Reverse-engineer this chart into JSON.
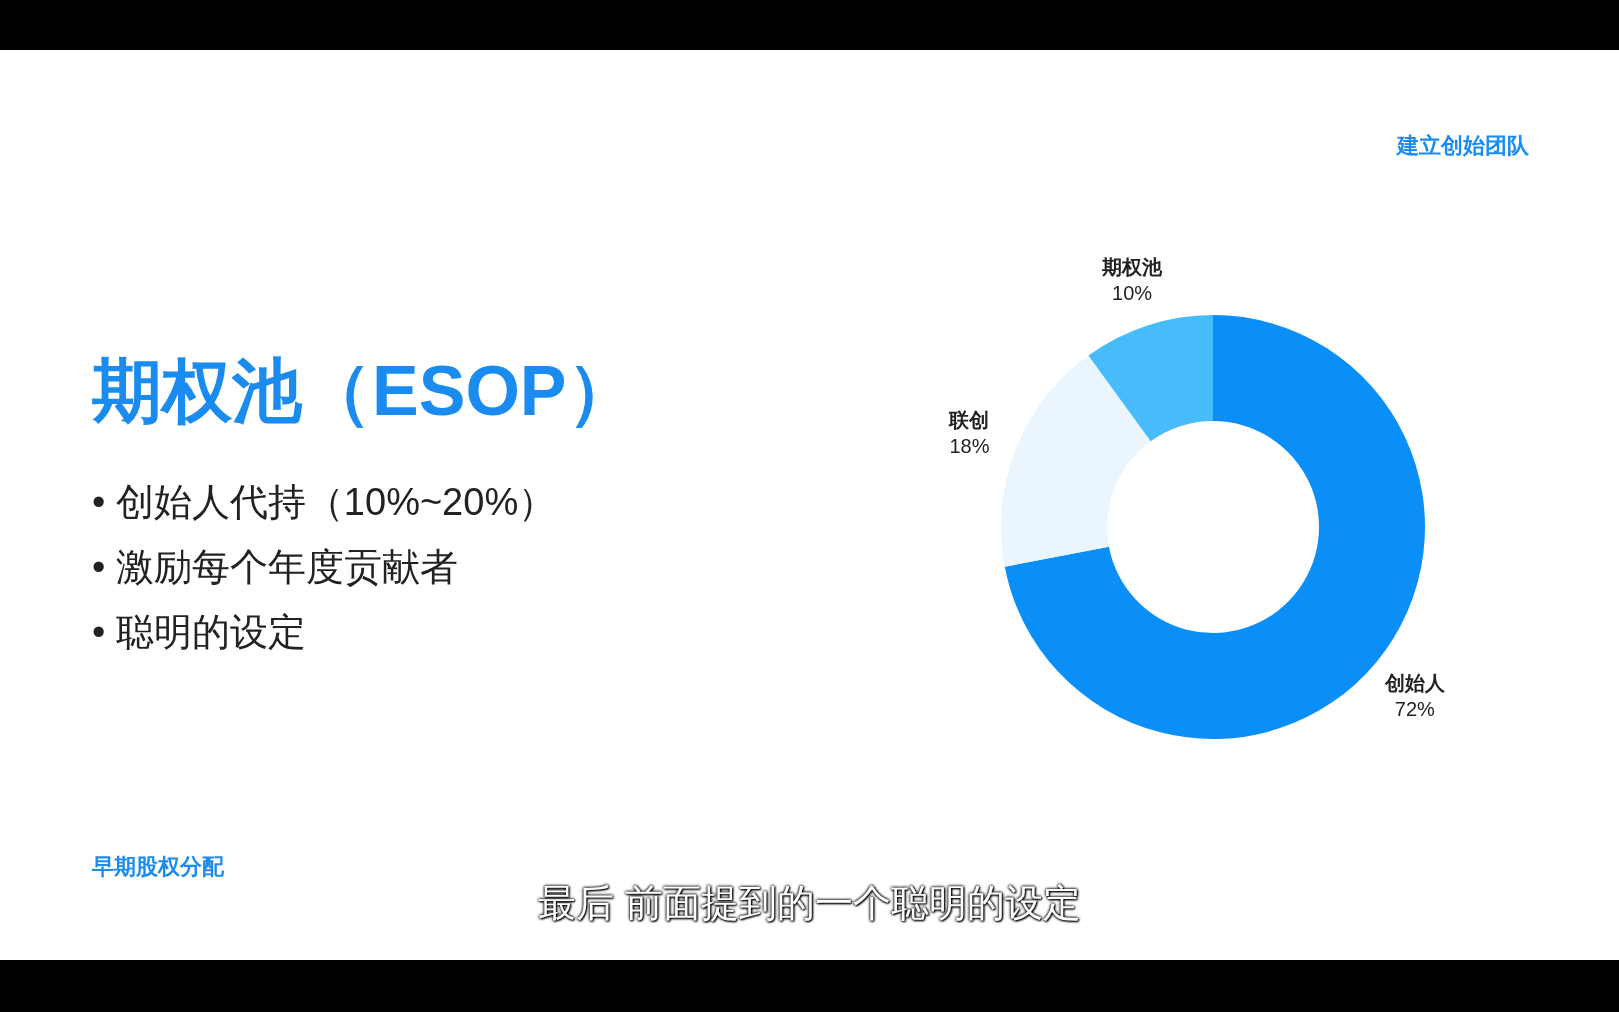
{
  "chart_data": {
    "type": "donut",
    "title": "期权池（ESOP）",
    "categories": [
      "创始人",
      "联创",
      "期权池"
    ],
    "values": [
      72,
      18,
      10
    ],
    "value_labels": [
      "72%",
      "18%",
      "10%"
    ],
    "colors": [
      "#0a8ef8",
      "#eaf5fe",
      "#48bbfb"
    ],
    "legend": false,
    "annotations": [
      "建立创始团队",
      "• 创始人代持（10%~20%）",
      "• 激励每个年度贡献者",
      "• 聪明的设定",
      "早期股权分配",
      "最后 前面提到的一个聪明的设定"
    ]
  }
}
